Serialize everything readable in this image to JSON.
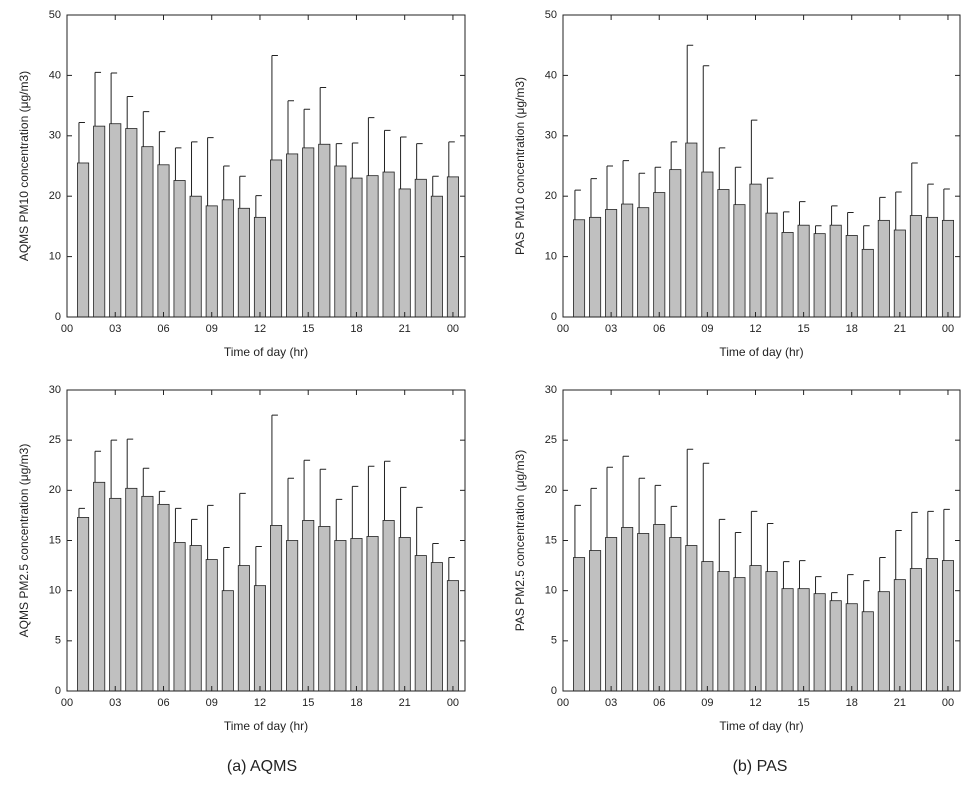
{
  "chart_data": [
    {
      "type": "bar",
      "ylabel": "AQMS PM10 concentration (μg/m3)",
      "xlabel": "Time of day (hr)",
      "color": "#c0c0c0",
      "x": [
        1,
        2,
        3,
        4,
        5,
        6,
        7,
        8,
        9,
        10,
        11,
        12,
        13,
        14,
        15,
        16,
        17,
        18,
        19,
        20,
        21,
        22,
        23,
        24
      ],
      "values": [
        25.5,
        31.6,
        32,
        31.2,
        28.2,
        25.2,
        22.6,
        20,
        18.4,
        19.4,
        18,
        16.5,
        26,
        27,
        28,
        28.6,
        25,
        23,
        23.4,
        24,
        21.2,
        22.8,
        20,
        23.2
      ],
      "errors": [
        6.7,
        8.9,
        8.4,
        5.3,
        5.8,
        5.5,
        5.4,
        9,
        11.3,
        5.6,
        5.3,
        3.6,
        17.3,
        8.8,
        6.4,
        9.4,
        3.7,
        5.8,
        9.6,
        6.9,
        8.6,
        5.9,
        3.3,
        5.8
      ],
      "xlim": [
        0,
        24.75
      ],
      "xticks": [
        {
          "value": 0,
          "label": "00"
        },
        {
          "value": 3,
          "label": "03"
        },
        {
          "value": 6,
          "label": "06"
        },
        {
          "value": 9,
          "label": "09"
        },
        12,
        15,
        18,
        21,
        {
          "value": 24,
          "label": "00"
        }
      ],
      "ylim": [
        0,
        50
      ],
      "yticks": [
        0,
        10,
        20,
        30,
        40,
        50
      ]
    },
    {
      "type": "bar",
      "ylabel": "PAS PM10 concentration (μg/m3)",
      "xlabel": "Time of day (hr)",
      "color": "#c0c0c0",
      "x": [
        1,
        2,
        3,
        4,
        5,
        6,
        7,
        8,
        9,
        10,
        11,
        12,
        13,
        14,
        15,
        16,
        17,
        18,
        19,
        20,
        21,
        22,
        23,
        24
      ],
      "values": [
        16.1,
        16.5,
        17.8,
        18.7,
        18.1,
        20.6,
        24.4,
        28.8,
        24,
        21.1,
        18.6,
        22,
        17.2,
        14,
        15.2,
        13.8,
        15.2,
        13.5,
        11.2,
        16,
        14.4,
        16.8,
        16.5,
        16
      ],
      "errors": [
        4.9,
        6.4,
        7.2,
        7.2,
        5.7,
        4.2,
        4.6,
        16.2,
        17.6,
        6.9,
        6.2,
        10.6,
        5.8,
        3.4,
        3.9,
        1.3,
        3.2,
        3.8,
        3.9,
        3.8,
        6.3,
        8.7,
        5.5,
        5.2
      ],
      "xlim": [
        0,
        24.75
      ],
      "xticks": [
        {
          "value": 0,
          "label": "00"
        },
        {
          "value": 3,
          "label": "03"
        },
        {
          "value": 6,
          "label": "06"
        },
        {
          "value": 9,
          "label": "09"
        },
        12,
        15,
        18,
        21,
        {
          "value": 24,
          "label": "00"
        }
      ],
      "ylim": [
        0,
        50
      ],
      "yticks": [
        0,
        10,
        20,
        30,
        40,
        50
      ]
    },
    {
      "type": "bar",
      "ylabel": "AQMS PM2.5 concentration (μg/m3)",
      "xlabel": "Time of day (hr)",
      "color": "#c0c0c0",
      "x": [
        1,
        2,
        3,
        4,
        5,
        6,
        7,
        8,
        9,
        10,
        11,
        12,
        13,
        14,
        15,
        16,
        17,
        18,
        19,
        20,
        21,
        22,
        23,
        24
      ],
      "values": [
        17.3,
        20.8,
        19.2,
        20.2,
        19.4,
        18.6,
        14.8,
        14.5,
        13.1,
        10,
        12.5,
        10.5,
        16.5,
        15,
        17,
        16.4,
        15,
        15.2,
        15.4,
        17,
        15.3,
        13.5,
        12.8,
        11
      ],
      "errors": [
        0.9,
        3.1,
        5.8,
        4.9,
        2.8,
        1.3,
        3.4,
        2.6,
        5.4,
        4.3,
        7.2,
        3.9,
        11,
        6.2,
        6,
        5.7,
        4.1,
        5.2,
        7,
        5.9,
        5,
        4.8,
        1.9,
        2.3
      ],
      "xlim": [
        0,
        24.75
      ],
      "xticks": [
        {
          "value": 0,
          "label": "00"
        },
        {
          "value": 3,
          "label": "03"
        },
        {
          "value": 6,
          "label": "06"
        },
        {
          "value": 9,
          "label": "09"
        },
        12,
        15,
        18,
        21,
        {
          "value": 24,
          "label": "00"
        }
      ],
      "ylim": [
        0,
        30
      ],
      "yticks": [
        0,
        5,
        10,
        15,
        20,
        25,
        30
      ]
    },
    {
      "type": "bar",
      "ylabel": "PAS PM2.5 concentration (μg/m3)",
      "xlabel": "Time of day (hr)",
      "color": "#c0c0c0",
      "x": [
        1,
        2,
        3,
        4,
        5,
        6,
        7,
        8,
        9,
        10,
        11,
        12,
        13,
        14,
        15,
        16,
        17,
        18,
        19,
        20,
        21,
        22,
        23,
        24
      ],
      "values": [
        13.3,
        14,
        15.3,
        16.3,
        15.7,
        16.6,
        15.3,
        14.5,
        12.9,
        11.9,
        11.3,
        12.5,
        11.9,
        10.2,
        10.2,
        9.7,
        9,
        8.7,
        7.9,
        9.9,
        11.1,
        12.2,
        13.2,
        13
      ],
      "errors": [
        5.2,
        6.2,
        7,
        7.1,
        5.5,
        3.9,
        3.1,
        9.6,
        9.8,
        5.2,
        4.5,
        5.4,
        4.8,
        2.7,
        2.8,
        1.7,
        0.8,
        2.9,
        3.1,
        3.4,
        4.9,
        5.6,
        4.7,
        5.1
      ],
      "xlim": [
        0,
        24.75
      ],
      "xticks": [
        {
          "value": 0,
          "label": "00"
        },
        {
          "value": 3,
          "label": "03"
        },
        {
          "value": 6,
          "label": "06"
        },
        {
          "value": 9,
          "label": "09"
        },
        12,
        15,
        18,
        21,
        {
          "value": 24,
          "label": "00"
        }
      ],
      "ylim": [
        0,
        30
      ],
      "yticks": [
        0,
        5,
        10,
        15,
        20,
        25,
        30
      ]
    }
  ],
  "captions": [
    "(a) AQMS",
    "(b) PAS"
  ]
}
